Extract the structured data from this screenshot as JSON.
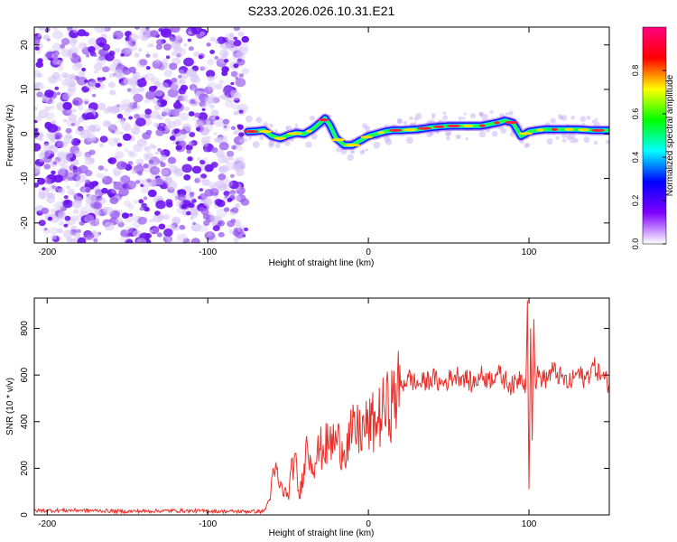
{
  "chart_data": [
    {
      "type": "heatmap",
      "title": "S233.2026.026.10.31.E21",
      "xlabel": "Height of straight line (km)",
      "ylabel": "Frequency (Hz)",
      "xlim": [
        -208,
        150
      ],
      "ylim": [
        -24.5,
        24
      ],
      "xticks": [
        -200,
        -100,
        0,
        100
      ],
      "yticks": [
        -20,
        -10,
        0,
        10,
        20
      ],
      "noise_region_x": [
        -208,
        -75
      ],
      "ridge": {
        "x": [
          -75,
          -70,
          -65,
          -60,
          -55,
          -50,
          -45,
          -40,
          -35,
          -30,
          -27,
          -24,
          -20,
          -15,
          -10,
          -5,
          0,
          5,
          10,
          15,
          20,
          30,
          40,
          50,
          60,
          70,
          80,
          85,
          90,
          95,
          100,
          105,
          110,
          120,
          130,
          140,
          150
        ],
        "y": [
          0.5,
          0.6,
          0.8,
          -0.5,
          -1.0,
          -0.3,
          0.2,
          0.0,
          1.0,
          2.5,
          3.5,
          2.0,
          -1.0,
          -2.5,
          -2.5,
          -1.5,
          -0.5,
          0.0,
          0.5,
          0.8,
          0.8,
          1.0,
          1.5,
          1.8,
          1.8,
          1.8,
          2.5,
          3.0,
          2.5,
          -0.5,
          0.5,
          0.8,
          1.0,
          1.0,
          1.0,
          0.8,
          0.8
        ]
      },
      "colorbar": {
        "label": "Normalized spectral amplitude",
        "ticks": [
          "0.0",
          "0.2",
          "0.4",
          "0.6",
          "0.8"
        ],
        "range": [
          0,
          1
        ],
        "colors": [
          "#ffffff",
          "#8000ff",
          "#0000ff",
          "#00ffff",
          "#00ff00",
          "#ffff00",
          "#ff0000",
          "#ff0080"
        ]
      }
    },
    {
      "type": "line",
      "xlabel": "Height of straight line (km)",
      "ylabel": "SNR (10 * v/v)",
      "xlim": [
        -208,
        150
      ],
      "ylim": [
        0,
        930
      ],
      "xticks": [
        -200,
        -100,
        0,
        100
      ],
      "yticks": [
        0,
        200,
        400,
        600,
        800
      ],
      "color": "#e8302a",
      "series": [
        {
          "name": "SNR",
          "x": [
            -208,
            -180,
            -150,
            -120,
            -90,
            -65,
            -62,
            -58,
            -55,
            -50,
            -46,
            -43,
            -40,
            -38,
            -35,
            -30,
            -25,
            -20,
            -15,
            -10,
            -5,
            0,
            5,
            10,
            15,
            20,
            25,
            30,
            35,
            40,
            45,
            50,
            55,
            60,
            65,
            70,
            75,
            80,
            85,
            90,
            95,
            98,
            99,
            100,
            101,
            102,
            103,
            104,
            105,
            110,
            115,
            120,
            125,
            130,
            135,
            140,
            145,
            150
          ],
          "y": [
            18,
            20,
            15,
            18,
            15,
            15,
            60,
            200,
            120,
            80,
            260,
            70,
            220,
            300,
            220,
            280,
            300,
            320,
            280,
            350,
            360,
            380,
            400,
            450,
            480,
            550,
            590,
            560,
            570,
            590,
            560,
            580,
            600,
            590,
            560,
            600,
            580,
            610,
            580,
            550,
            600,
            560,
            920,
            110,
            800,
            320,
            840,
            550,
            600,
            580,
            620,
            590,
            560,
            610,
            580,
            640,
            600,
            560
          ]
        }
      ]
    }
  ]
}
